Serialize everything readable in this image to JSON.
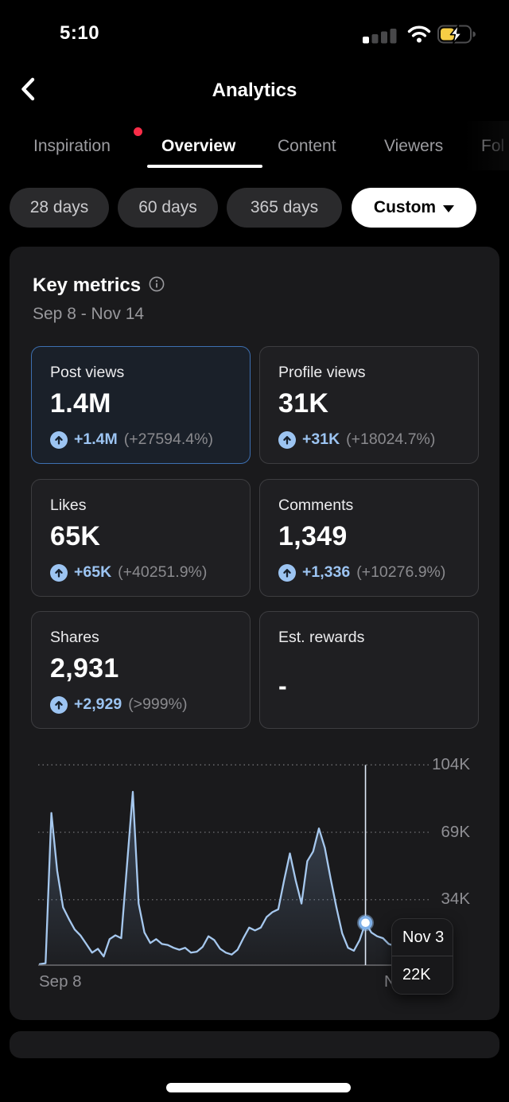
{
  "status_bar": {
    "time": "5:10",
    "icons": {
      "signal": "cellular-signal-low",
      "wifi": "wifi-full",
      "battery": "battery-charging"
    }
  },
  "header": {
    "title": "Analytics",
    "back_icon": "chevron-left"
  },
  "tabs": {
    "items": [
      {
        "label": "Inspiration",
        "has_badge": true,
        "active": false
      },
      {
        "label": "Overview",
        "has_badge": false,
        "active": true
      },
      {
        "label": "Content",
        "has_badge": false,
        "active": false
      },
      {
        "label": "Viewers",
        "has_badge": false,
        "active": false
      },
      {
        "label": "Fol",
        "has_badge": false,
        "active": false,
        "truncated": true
      }
    ]
  },
  "filters": {
    "options": [
      "28 days",
      "60 days",
      "365 days"
    ],
    "custom_label": "Custom"
  },
  "key_metrics": {
    "title": "Key metrics",
    "info_icon": "info-circle",
    "date_range": "Sep 8 - Nov 14",
    "cards": [
      {
        "label": "Post views",
        "value": "1.4M",
        "change": "+1.4M",
        "change_pct": "(+27594.4%)",
        "selected": true
      },
      {
        "label": "Profile views",
        "value": "31K",
        "change": "+31K",
        "change_pct": "(+18024.7%)",
        "selected": false
      },
      {
        "label": "Likes",
        "value": "65K",
        "change": "+65K",
        "change_pct": "(+40251.9%)",
        "selected": false
      },
      {
        "label": "Comments",
        "value": "1,349",
        "change": "+1,336",
        "change_pct": "(+10276.9%)",
        "selected": false
      },
      {
        "label": "Shares",
        "value": "2,931",
        "change": "+2,929",
        "change_pct": "(>999%)",
        "selected": false
      },
      {
        "label": "Est. rewards",
        "value": "-",
        "change": null,
        "change_pct": null,
        "selected": false
      }
    ]
  },
  "chart_data": {
    "type": "area",
    "metric": "Post views",
    "unit": "K",
    "x_start_label": "Sep 8",
    "x_end_label": "Nov 14",
    "grid": "dotted-horizontal",
    "legend": "none",
    "ylim": [
      0,
      110
    ],
    "y_ticks": [
      {
        "label": "104K",
        "value": 104
      },
      {
        "label": "69K",
        "value": 69
      },
      {
        "label": "34K",
        "value": 34
      }
    ],
    "values": [
      0.5,
      1,
      79,
      49,
      30,
      24,
      18.5,
      15.4,
      11,
      6.5,
      8.5,
      4.5,
      13.5,
      15.5,
      14,
      52,
      90,
      32,
      17,
      11.5,
      13.5,
      11,
      10.5,
      9,
      8,
      9,
      6.5,
      7,
      9.5,
      15,
      13,
      8.5,
      6.5,
      5.5,
      8,
      14,
      19.5,
      18,
      19.5,
      25,
      27.5,
      29,
      44,
      58,
      44,
      32,
      54,
      59,
      71,
      61,
      45,
      30,
      16.5,
      9,
      7.5,
      13,
      22,
      17,
      15,
      14,
      11,
      10,
      9.5,
      9,
      8.5,
      8,
      8.5,
      8
    ],
    "selected": {
      "index": 56,
      "date": "Nov 3",
      "value": "22K"
    }
  },
  "colors": {
    "accent_blue": "#9cc4f2",
    "selected_border_blue": "#3d6fb0",
    "chart_line": "#a6c8ee",
    "badge_red": "#fa2d48",
    "card_bg": "#1a1a1c",
    "subcard_bg": "#1f1f22",
    "muted_gray": "#8a8a8e",
    "battery_yellow": "#f7ce45"
  }
}
